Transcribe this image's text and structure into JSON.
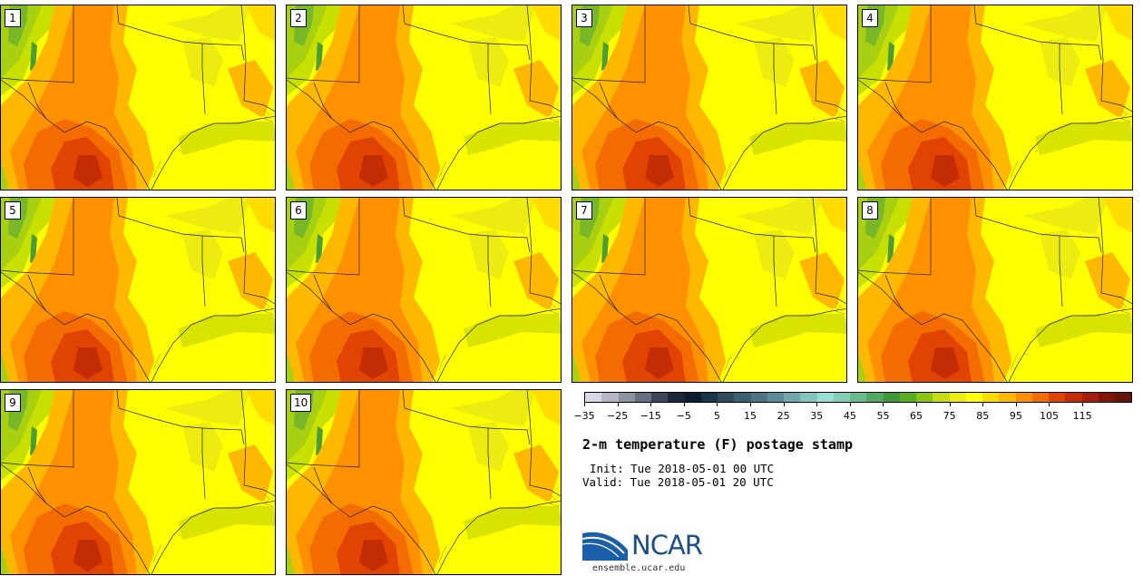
{
  "panels": [
    {
      "label": "1"
    },
    {
      "label": "2"
    },
    {
      "label": "3"
    },
    {
      "label": "4"
    },
    {
      "label": "5"
    },
    {
      "label": "6"
    },
    {
      "label": "7"
    },
    {
      "label": "8"
    },
    {
      "label": "9"
    },
    {
      "label": "10"
    }
  ],
  "colorbar": {
    "colors": [
      "#d8d8e8",
      "#b4b8c4",
      "#8c94a4",
      "#667080",
      "#3c4858",
      "#1c2838",
      "#0c1c30",
      "#1c3448",
      "#304c60",
      "#3c6070",
      "#4c7484",
      "#5c8c98",
      "#70a8ac",
      "#84c4c0",
      "#98e0d4",
      "#84d0b4",
      "#68bc8c",
      "#52a860",
      "#3c9838",
      "#58ac20",
      "#8cc414",
      "#c4dc10",
      "#ecec10",
      "#ffff00",
      "#ffdc00",
      "#ffb800",
      "#ff9000",
      "#f46c00",
      "#e04400",
      "#c42c04",
      "#a41c0c",
      "#841408",
      "#641408"
    ],
    "tick_labels": [
      "−35",
      "−25",
      "−15",
      "−5",
      "5",
      "15",
      "25",
      "35",
      "45",
      "55",
      "65",
      "75",
      "85",
      "95",
      "105",
      "115"
    ]
  },
  "title": "2-m temperature (F) postage stamp",
  "init_text": "Init: Tue 2018-05-01 00 UTC",
  "valid_text": "Valid: Tue 2018-05-01 20 UTC",
  "logo": {
    "wordmark": "NCAR",
    "url": "ensemble.ucar.edu"
  }
}
